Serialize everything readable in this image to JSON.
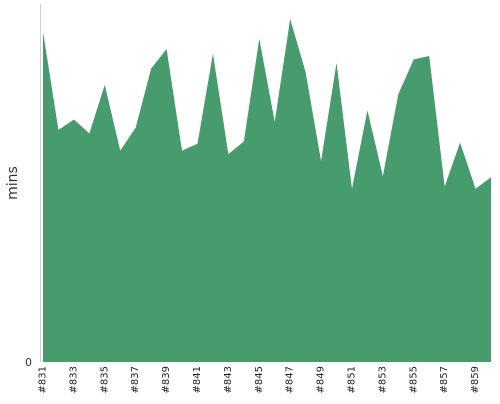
{
  "chart_data": {
    "type": "area",
    "ylabel": "mins",
    "y_ticks": [
      0
    ],
    "ylim": [
      0,
      31
    ],
    "grid": false,
    "color": "#469c6d",
    "x": [
      "#831",
      "#832",
      "#833",
      "#834",
      "#835",
      "#836",
      "#837",
      "#838",
      "#839",
      "#840",
      "#841",
      "#842",
      "#843",
      "#844",
      "#845",
      "#846",
      "#847",
      "#848",
      "#849",
      "#850",
      "#851",
      "#852",
      "#853",
      "#854",
      "#855",
      "#856",
      "#857",
      "#858",
      "#859",
      "#860"
    ],
    "x_tick_labels": [
      "#831",
      "#833",
      "#835",
      "#837",
      "#839",
      "#841",
      "#843",
      "#845",
      "#847",
      "#849",
      "#851",
      "#853",
      "#855",
      "#857",
      "#859"
    ],
    "values": [
      28.6,
      20.1,
      21.0,
      19.8,
      24.0,
      18.3,
      20.3,
      25.4,
      27.1,
      18.3,
      18.9,
      26.7,
      18.0,
      19.1,
      28.0,
      20.8,
      29.7,
      25.1,
      17.4,
      25.9,
      15.0,
      21.8,
      16.1,
      23.2,
      26.2,
      26.5,
      15.2,
      19.0,
      15.0,
      16.0
    ]
  }
}
